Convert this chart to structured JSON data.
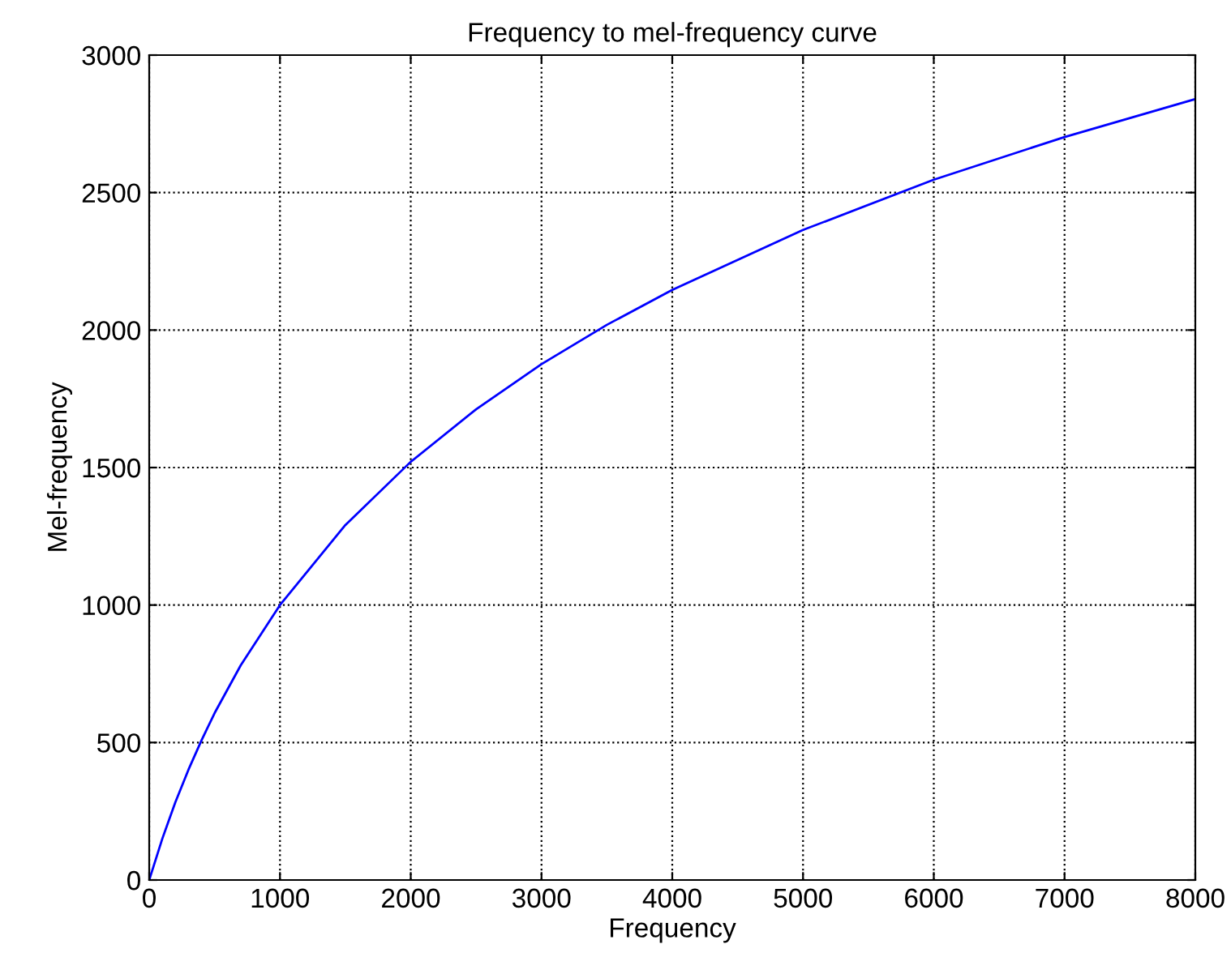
{
  "chart_data": {
    "type": "line",
    "title": "Frequency to mel-frequency curve",
    "xlabel": "Frequency",
    "ylabel": "Mel-frequency",
    "x": [
      0,
      100,
      200,
      300,
      400,
      500,
      700,
      1000,
      1500,
      2000,
      2500,
      3000,
      3500,
      4000,
      5000,
      6000,
      7000,
      8000
    ],
    "series": [
      {
        "color": "#0000ff",
        "values": [
          0,
          150,
          283,
          401,
          508,
          607,
          781,
          1000,
          1291,
          1521,
          1712,
          1876,
          2019,
          2146,
          2364,
          2547,
          2702,
          2840
        ]
      }
    ],
    "xlim": [
      0,
      8000
    ],
    "ylim": [
      0,
      3000
    ],
    "xticks": [
      0,
      1000,
      2000,
      3000,
      4000,
      5000,
      6000,
      7000,
      8000
    ],
    "yticks": [
      0,
      500,
      1000,
      1500,
      2000,
      2500,
      3000
    ],
    "grid": true,
    "marker": "none",
    "line_style": "solid"
  }
}
